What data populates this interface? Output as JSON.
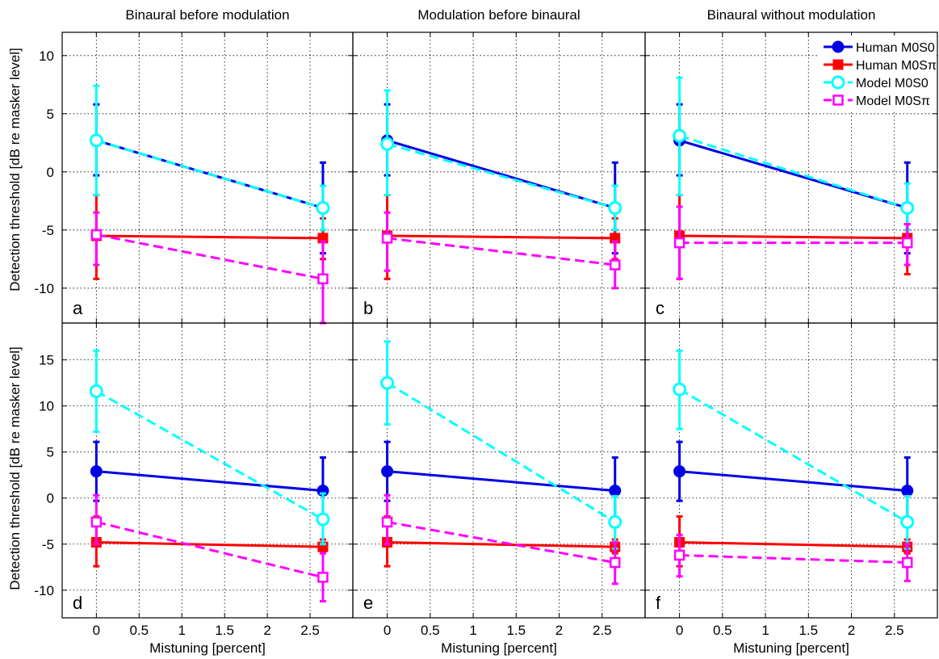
{
  "figure": {
    "column_titles": [
      "Binaural before modulation",
      "Modulation before binaural",
      "Binaural without modulation"
    ],
    "ylabel_top": "Detection threshold [dB re masker level]",
    "ylabel_bottom": "Detection threshold [dB re masker level]",
    "xlabel": "Mistuning [percent]"
  },
  "legend": {
    "placement": "top-right of panel c",
    "entries": [
      {
        "label": "Human M0S0",
        "color": "#0000e6",
        "marker": "filled-circle",
        "dash": "solid"
      },
      {
        "label": "Human M0Sπ",
        "color": "#ff0000",
        "marker": "filled-square",
        "dash": "solid"
      },
      {
        "label": "Model M0S0",
        "color": "#00ffff",
        "marker": "open-circle",
        "dash": "dashed"
      },
      {
        "label": "Model M0Sπ",
        "color": "#ff00ff",
        "marker": "open-square",
        "dash": "dashed"
      }
    ]
  },
  "chart_data": [
    {
      "type": "line",
      "panel_label": "a",
      "title": "Binaural before modulation",
      "xlabel": "",
      "ylabel": "Detection threshold [dB re masker level]",
      "xlim": [
        -0.4,
        3.0
      ],
      "ylim": [
        -13,
        12
      ],
      "grid": true,
      "x_ticks": [
        0,
        0.5,
        1,
        1.5,
        2,
        2.5
      ],
      "y_ticks": [
        -10,
        -5,
        0,
        5,
        10
      ],
      "series": [
        {
          "name": "Human M0S0",
          "x": [
            0,
            2.65
          ],
          "y": [
            2.7,
            -3.1
          ],
          "err": [
            [
              -0.3,
              5.8
            ],
            [
              -7.0,
              0.8
            ]
          ]
        },
        {
          "name": "Human M0Sπ",
          "x": [
            0,
            2.65
          ],
          "y": [
            -5.5,
            -5.7
          ],
          "err": [
            [
              -9.2,
              -2.0
            ],
            [
              -7.5,
              -4.0
            ]
          ]
        },
        {
          "name": "Model M0S0",
          "x": [
            0,
            2.65
          ],
          "y": [
            2.7,
            -3.1
          ],
          "err": [
            [
              -2.0,
              7.4
            ],
            [
              -5.0,
              -1.2
            ]
          ]
        },
        {
          "name": "Model M0Sπ",
          "x": [
            0,
            2.65
          ],
          "y": [
            -5.4,
            -9.2
          ],
          "err": [
            [
              -8.0,
              -3.5
            ],
            [
              -13.0,
              -6.0
            ]
          ]
        }
      ]
    },
    {
      "type": "line",
      "panel_label": "b",
      "title": "Modulation before binaural",
      "xlabel": "",
      "ylabel": "",
      "xlim": [
        -0.4,
        3.0
      ],
      "ylim": [
        -13,
        12
      ],
      "grid": true,
      "x_ticks": [
        0,
        0.5,
        1,
        1.5,
        2,
        2.5
      ],
      "y_ticks": [
        -10,
        -5,
        0,
        5,
        10
      ],
      "series": [
        {
          "name": "Human M0S0",
          "x": [
            0,
            2.65
          ],
          "y": [
            2.7,
            -3.1
          ],
          "err": [
            [
              -0.3,
              5.8
            ],
            [
              -7.0,
              0.8
            ]
          ]
        },
        {
          "name": "Human M0Sπ",
          "x": [
            0,
            2.65
          ],
          "y": [
            -5.5,
            -5.7
          ],
          "err": [
            [
              -9.2,
              -2.0
            ],
            [
              -7.5,
              -4.0
            ]
          ]
        },
        {
          "name": "Model M0S0",
          "x": [
            0,
            2.65
          ],
          "y": [
            2.4,
            -3.1
          ],
          "err": [
            [
              -2.0,
              7.0
            ],
            [
              -5.0,
              -1.2
            ]
          ]
        },
        {
          "name": "Model M0Sπ",
          "x": [
            0,
            2.65
          ],
          "y": [
            -5.7,
            -8.0
          ],
          "err": [
            [
              -8.5,
              -3.5
            ],
            [
              -10.0,
              -6.0
            ]
          ]
        }
      ]
    },
    {
      "type": "line",
      "panel_label": "c",
      "title": "Binaural without modulation",
      "xlabel": "",
      "ylabel": "",
      "xlim": [
        -0.4,
        3.0
      ],
      "ylim": [
        -13,
        12
      ],
      "grid": true,
      "x_ticks": [
        0,
        0.5,
        1,
        1.5,
        2,
        2.5
      ],
      "y_ticks": [
        -10,
        -5,
        0,
        5,
        10
      ],
      "series": [
        {
          "name": "Human M0S0",
          "x": [
            0,
            2.65
          ],
          "y": [
            2.7,
            -3.1
          ],
          "err": [
            [
              -0.3,
              5.8
            ],
            [
              -7.0,
              0.8
            ]
          ]
        },
        {
          "name": "Human M0Sπ",
          "x": [
            0,
            2.65
          ],
          "y": [
            -5.5,
            -5.7
          ],
          "err": [
            [
              -9.2,
              -2.0
            ],
            [
              -8.8,
              -4.5
            ]
          ]
        },
        {
          "name": "Model M0S0",
          "x": [
            0,
            2.65
          ],
          "y": [
            3.1,
            -3.1
          ],
          "err": [
            [
              -2.0,
              8.1
            ],
            [
              -5.0,
              -1.0
            ]
          ]
        },
        {
          "name": "Model M0Sπ",
          "x": [
            0,
            2.65
          ],
          "y": [
            -6.1,
            -6.1
          ],
          "err": [
            [
              -9.2,
              -3.0
            ],
            [
              -8.0,
              -4.5
            ]
          ]
        }
      ]
    },
    {
      "type": "line",
      "panel_label": "d",
      "title": "",
      "xlabel": "Mistuning [percent]",
      "ylabel": "Detection threshold [dB re masker level]",
      "xlim": [
        -0.4,
        3.0
      ],
      "ylim": [
        -13,
        19
      ],
      "grid": true,
      "x_ticks": [
        0,
        0.5,
        1,
        1.5,
        2,
        2.5
      ],
      "y_ticks": [
        -10,
        -5,
        0,
        5,
        10,
        15
      ],
      "series": [
        {
          "name": "Human M0S0",
          "x": [
            0,
            2.65
          ],
          "y": [
            2.9,
            0.8
          ],
          "err": [
            [
              -0.3,
              6.1
            ],
            [
              -2.8,
              4.4
            ]
          ]
        },
        {
          "name": "Human M0Sπ",
          "x": [
            0,
            2.65
          ],
          "y": [
            -4.8,
            -5.3
          ],
          "err": [
            [
              -7.4,
              -2.0
            ],
            [
              -6.0,
              -4.5
            ]
          ]
        },
        {
          "name": "Model M0S0",
          "x": [
            0,
            2.65
          ],
          "y": [
            11.6,
            -2.3
          ],
          "err": [
            [
              7.2,
              16.0
            ],
            [
              -5.0,
              0.5
            ]
          ]
        },
        {
          "name": "Model M0Sπ",
          "x": [
            0,
            2.65
          ],
          "y": [
            -2.6,
            -8.6
          ],
          "err": [
            [
              -5.0,
              0.3
            ],
            [
              -11.2,
              -6.0
            ]
          ]
        }
      ]
    },
    {
      "type": "line",
      "panel_label": "e",
      "title": "",
      "xlabel": "Mistuning [percent]",
      "ylabel": "",
      "xlim": [
        -0.4,
        3.0
      ],
      "ylim": [
        -13,
        19
      ],
      "grid": true,
      "x_ticks": [
        0,
        0.5,
        1,
        1.5,
        2,
        2.5
      ],
      "y_ticks": [
        -10,
        -5,
        0,
        5,
        10,
        15
      ],
      "series": [
        {
          "name": "Human M0S0",
          "x": [
            0,
            2.65
          ],
          "y": [
            2.9,
            0.8
          ],
          "err": [
            [
              -0.3,
              6.1
            ],
            [
              -2.8,
              4.4
            ]
          ]
        },
        {
          "name": "Human M0Sπ",
          "x": [
            0,
            2.65
          ],
          "y": [
            -4.8,
            -5.3
          ],
          "err": [
            [
              -7.4,
              -2.0
            ],
            [
              -6.0,
              -4.5
            ]
          ]
        },
        {
          "name": "Model M0S0",
          "x": [
            0,
            2.65
          ],
          "y": [
            12.5,
            -2.6
          ],
          "err": [
            [
              8.0,
              17.0
            ],
            [
              -5.5,
              0.2
            ]
          ]
        },
        {
          "name": "Model M0Sπ",
          "x": [
            0,
            2.65
          ],
          "y": [
            -2.6,
            -7.0
          ],
          "err": [
            [
              -5.0,
              0.3
            ],
            [
              -9.3,
              -4.8
            ]
          ]
        }
      ]
    },
    {
      "type": "line",
      "panel_label": "f",
      "title": "",
      "xlabel": "Mistuning [percent]",
      "ylabel": "",
      "xlim": [
        -0.4,
        3.0
      ],
      "ylim": [
        -13,
        19
      ],
      "grid": true,
      "x_ticks": [
        0,
        0.5,
        1,
        1.5,
        2,
        2.5
      ],
      "y_ticks": [
        -10,
        -5,
        0,
        5,
        10,
        15
      ],
      "series": [
        {
          "name": "Human M0S0",
          "x": [
            0,
            2.65
          ],
          "y": [
            2.9,
            0.8
          ],
          "err": [
            [
              -0.3,
              6.1
            ],
            [
              -2.8,
              4.4
            ]
          ]
        },
        {
          "name": "Human M0Sπ",
          "x": [
            0,
            2.65
          ],
          "y": [
            -4.8,
            -5.3
          ],
          "err": [
            [
              -7.4,
              -2.0
            ],
            [
              -6.0,
              -4.5
            ]
          ]
        },
        {
          "name": "Model M0S0",
          "x": [
            0,
            2.65
          ],
          "y": [
            11.8,
            -2.6
          ],
          "err": [
            [
              7.5,
              16.0
            ],
            [
              -5.5,
              0.2
            ]
          ]
        },
        {
          "name": "Model M0Sπ",
          "x": [
            0,
            2.65
          ],
          "y": [
            -6.2,
            -7.0
          ],
          "err": [
            [
              -8.5,
              -4.0
            ],
            [
              -9.0,
              -5.0
            ]
          ]
        }
      ]
    }
  ]
}
